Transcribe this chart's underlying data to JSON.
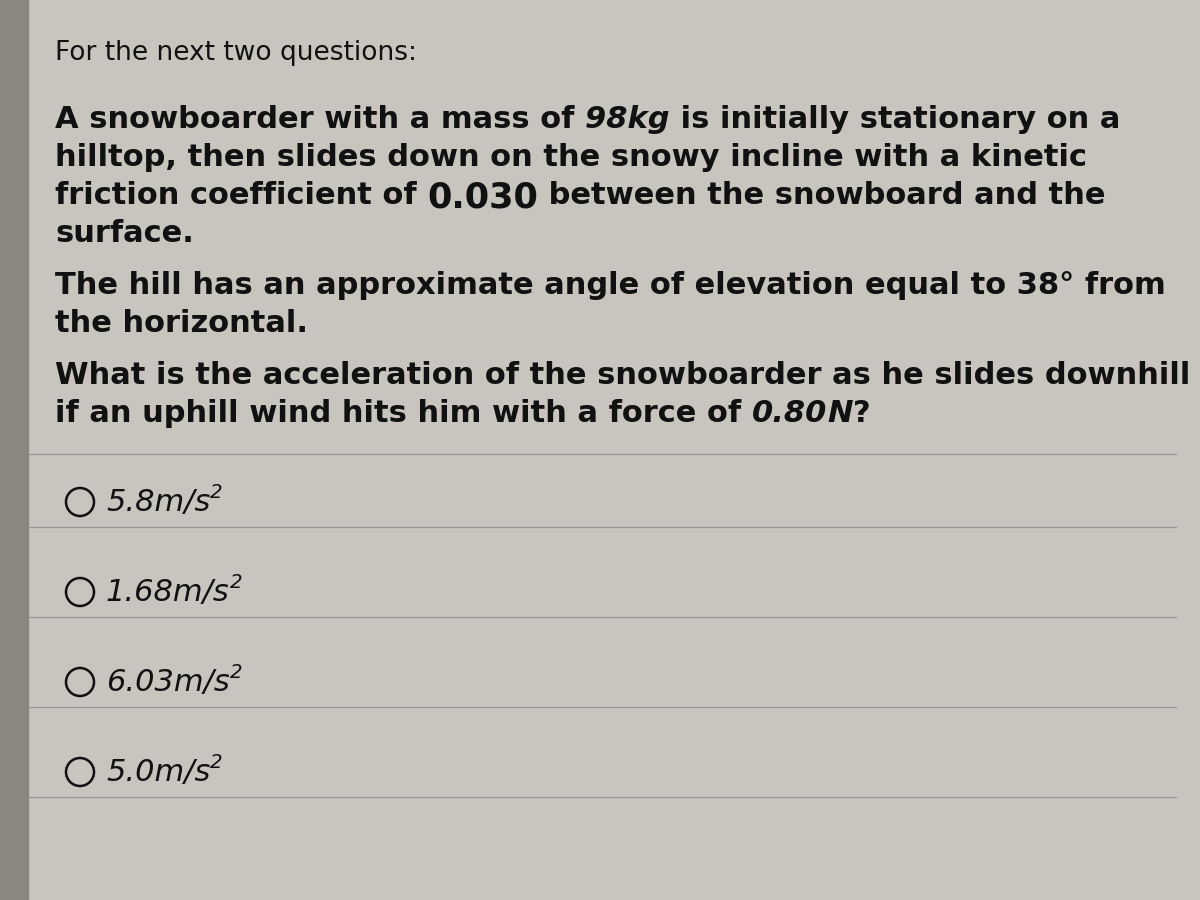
{
  "background_color": "#c8c4be",
  "card_color": "#ddd9d3",
  "left_border_color": "#8a8680",
  "title": "For the next two questions:",
  "p1_line1": "A snowboarder with a mass of ",
  "p1_98kg": "98",
  "p1_kg": "kg",
  "p1_line1_rest": " is initially stationary on a",
  "p1_line2": "hilltop, then slides down on the snowy incline with a kinetic",
  "p1_line3_pre": "friction coefficient of ",
  "p1_030": "0.030",
  "p1_line3_post": " between the snowboard and the",
  "p1_line4": "surface.",
  "p2_line1": "The hill has an approximate angle of elevation equal to 38° from",
  "p2_line2": "the horizontal.",
  "p3_line1": "What is the acceleration of the snowboarder as he slides downhill",
  "p3_line2_pre": "if an uphill wind hits him with a force of ",
  "p3_080N": "0.80",
  "p3_N": "N",
  "p3_q": "?",
  "options": [
    "5.8m/s²",
    "1.68m/s²",
    "6.03m/s²",
    "5.0m/s²"
  ],
  "font_size_title": 19,
  "font_size_body": 22,
  "font_size_options": 22,
  "text_color": "#111111",
  "line_color": "#999590"
}
